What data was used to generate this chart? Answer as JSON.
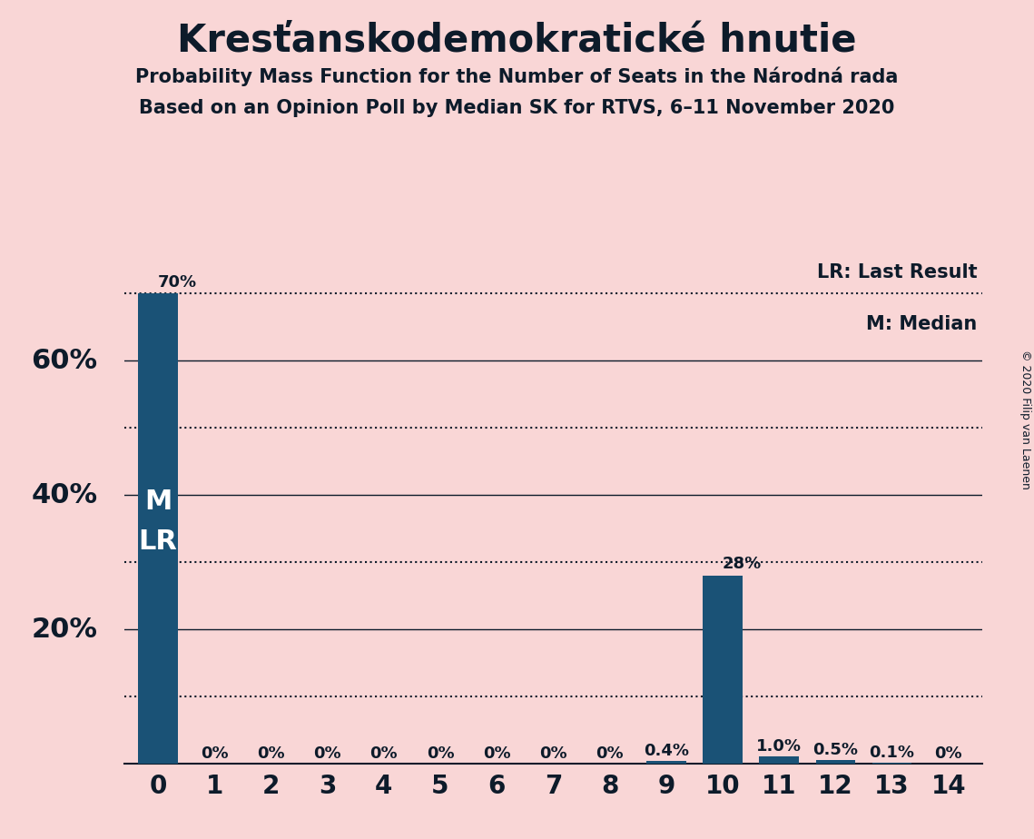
{
  "title": "Kresťanskodemokratické hnutie",
  "subtitle1": "Probability Mass Function for the Number of Seats in the Národná rada",
  "subtitle2": "Based on an Opinion Poll by Median SK for RTVS, 6–11 November 2020",
  "copyright": "© 2020 Filip van Laenen",
  "categories": [
    0,
    1,
    2,
    3,
    4,
    5,
    6,
    7,
    8,
    9,
    10,
    11,
    12,
    13,
    14
  ],
  "values": [
    70.0,
    0.0,
    0.0,
    0.0,
    0.0,
    0.0,
    0.0,
    0.0,
    0.0,
    0.4,
    28.0,
    1.0,
    0.5,
    0.1,
    0.0
  ],
  "labels": [
    "70%",
    "0%",
    "0%",
    "0%",
    "0%",
    "0%",
    "0%",
    "0%",
    "0%",
    "0.4%",
    "28%",
    "1.0%",
    "0.5%",
    "0.1%",
    "0%"
  ],
  "bar_color": "#1a5276",
  "background_color": "#f9d6d6",
  "text_color": "#0d1b2a",
  "lr_value": 70.0,
  "legend_lr": "LR: Last Result",
  "legend_m": "M: Median",
  "ylim": [
    0,
    75
  ],
  "yticks_solid": [
    20,
    40,
    60
  ],
  "yticks_dotted": [
    10,
    30,
    50,
    70
  ],
  "ytick_labels_positions": [
    20,
    40,
    60
  ],
  "ytick_labels_values": [
    "20%",
    "40%",
    "60%"
  ]
}
